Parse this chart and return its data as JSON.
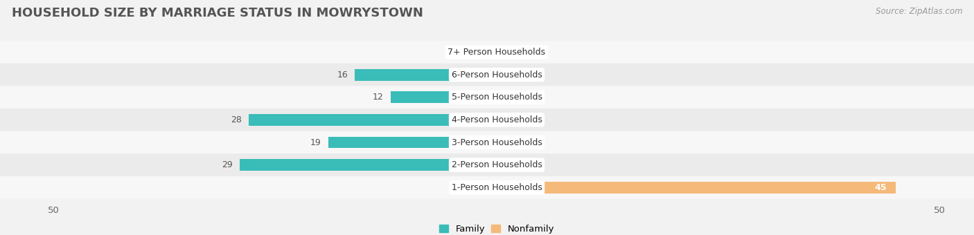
{
  "title": "HOUSEHOLD SIZE BY MARRIAGE STATUS IN MOWRYSTOWN",
  "source": "Source: ZipAtlas.com",
  "categories": [
    "7+ Person Households",
    "6-Person Households",
    "5-Person Households",
    "4-Person Households",
    "3-Person Households",
    "2-Person Households",
    "1-Person Households"
  ],
  "family_values": [
    0,
    16,
    12,
    28,
    19,
    29,
    0
  ],
  "nonfamily_values": [
    0,
    0,
    0,
    0,
    0,
    0,
    45
  ],
  "family_color": "#3abcb8",
  "nonfamily_color": "#f5b97a",
  "nonfamily_color_light": "#f8d4ae",
  "xlim": 50,
  "bar_height": 0.52,
  "bg_color": "#f2f2f2",
  "row_colors": [
    "#f7f7f7",
    "#ebebeb"
  ],
  "label_fontsize": 9,
  "title_fontsize": 13,
  "source_fontsize": 8.5,
  "value_fontsize": 9,
  "title_color": "#555555",
  "source_color": "#999999",
  "value_color": "#555555"
}
